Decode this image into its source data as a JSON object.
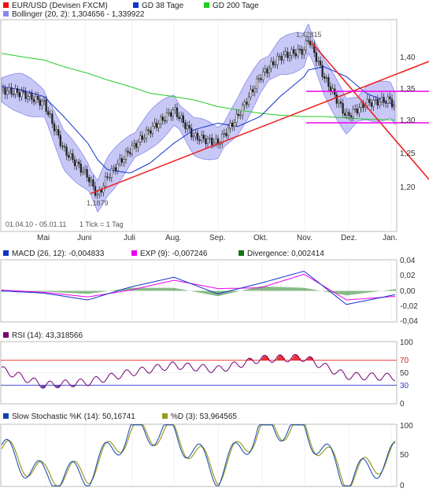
{
  "colors": {
    "price": "#ee1111",
    "gd38": "#1133cc",
    "gd200": "#22cc22",
    "bollinger": "#8888ee",
    "bollinger_fill": "#c8c8f6",
    "trend_red": "#ee2222",
    "support_magenta": "#ee00ee",
    "macd": "#1133cc",
    "exp": "#ee00ee",
    "divergence": "#117711",
    "rsi": "#770077",
    "stoch_k": "#1144aa",
    "stoch_d": "#999922"
  },
  "legend": {
    "price": "EUR/USD (Devisen FXCM)",
    "gd38": "GD 38 Tage",
    "gd200": "GD 200 Tage",
    "bollinger": "Bollinger (20, 2): 1,304656 - 1,339922"
  },
  "info": {
    "range": "01.04.10 - 05.01.11",
    "tick": "1 Tick = 1 Tag",
    "high_label": "1,42815",
    "low_label": "1,1879"
  },
  "months": [
    "Mai",
    "Juni",
    "Juli",
    "Aug.",
    "Sep.",
    "Okt.",
    "Nov.",
    "Dez.",
    "Jan."
  ],
  "macd_legend": {
    "macd": "MACD (26, 12): -0,004833",
    "exp": "EXP (9): -0,007246",
    "divergence": "Divergence: 0,002414"
  },
  "rsi_legend": "RSI (14): 43,318566",
  "stoch_legend": {
    "k": "Slow Stochastic %K (14): 50,16741",
    "d": "%D (3): 53,964565"
  },
  "chart_data": [
    {
      "type": "line",
      "title": "EUR/USD (Devisen FXCM)",
      "x": [
        "2010-04-01",
        "2010-04-15",
        "2010-05-01",
        "2010-05-15",
        "2010-06-01",
        "2010-06-08",
        "2010-06-15",
        "2010-07-01",
        "2010-07-15",
        "2010-08-01",
        "2010-08-15",
        "2010-09-01",
        "2010-09-15",
        "2010-10-01",
        "2010-10-15",
        "2010-11-01",
        "2010-11-04",
        "2010-11-15",
        "2010-12-01",
        "2010-12-15",
        "2011-01-01",
        "2011-01-05"
      ],
      "series": [
        {
          "name": "EUR/USD (Devisen FXCM)",
          "values": [
            1.35,
            1.345,
            1.33,
            1.26,
            1.22,
            1.19,
            1.22,
            1.26,
            1.29,
            1.32,
            1.28,
            1.27,
            1.31,
            1.37,
            1.4,
            1.41,
            1.428,
            1.37,
            1.31,
            1.33,
            1.335,
            1.32
          ]
        },
        {
          "name": "GD 38 Tage",
          "values": [
            1.355,
            1.35,
            1.34,
            1.31,
            1.27,
            1.245,
            1.23,
            1.225,
            1.24,
            1.27,
            1.29,
            1.3,
            1.295,
            1.31,
            1.34,
            1.37,
            1.38,
            1.385,
            1.37,
            1.345,
            1.33,
            1.325
          ]
        },
        {
          "name": "GD 200 Tage",
          "values": [
            1.405,
            1.4,
            1.395,
            1.385,
            1.375,
            1.37,
            1.365,
            1.355,
            1.345,
            1.34,
            1.335,
            1.325,
            1.32,
            1.315,
            1.312,
            1.31,
            1.31,
            1.31,
            1.308,
            1.306,
            1.305,
            1.305
          ]
        }
      ],
      "y_ticks": [
        "1,20",
        "1,25",
        "1,30",
        "1,35",
        "1,40"
      ],
      "ylim": [
        1.17,
        1.44
      ],
      "annotations": [
        "1,42815",
        "1,1879"
      ],
      "horizontal_lines": [
        1.345,
        1.293
      ]
    },
    {
      "type": "line",
      "title": "MACD (26, 12): -0,004833",
      "x": [
        "2010-04-01",
        "2010-05-01",
        "2010-06-01",
        "2010-07-01",
        "2010-08-01",
        "2010-09-01",
        "2010-10-01",
        "2010-11-01",
        "2010-12-01",
        "2011-01-05"
      ],
      "series": [
        {
          "name": "MACD (26, 12)",
          "values": [
            0.0,
            -0.003,
            -0.012,
            0.005,
            0.018,
            -0.004,
            0.01,
            0.026,
            -0.018,
            -0.0048
          ]
        },
        {
          "name": "EXP (9)",
          "values": [
            0.001,
            -0.002,
            -0.008,
            0.001,
            0.014,
            0.003,
            0.004,
            0.022,
            -0.012,
            -0.0072
          ]
        }
      ],
      "y_ticks": [
        "0,04",
        "0,02",
        "0,00",
        "-0,02",
        "-0,04"
      ],
      "ylim": [
        -0.04,
        0.04
      ]
    },
    {
      "type": "line",
      "title": "RSI (14): 43,318566",
      "x": [
        "2010-04-01",
        "2010-05-01",
        "2010-06-01",
        "2010-07-01",
        "2010-08-01",
        "2010-09-01",
        "2010-10-01",
        "2010-11-01",
        "2010-12-01",
        "2011-01-05"
      ],
      "series": [
        {
          "name": "RSI (14)",
          "values": [
            55,
            30,
            35,
            50,
            62,
            55,
            72,
            74,
            45,
            43
          ]
        }
      ],
      "y_ticks": [
        "100",
        "70",
        "50",
        "30",
        "0"
      ],
      "ylim": [
        0,
        100
      ]
    },
    {
      "type": "line",
      "title": "Slow Stochastic %K (14): 50,16741",
      "x": [
        "2010-04-01",
        "2010-05-01",
        "2010-06-01",
        "2010-07-01",
        "2010-08-01",
        "2010-09-01",
        "2010-10-01",
        "2010-11-01",
        "2010-12-01",
        "2011-01-05"
      ],
      "series": [
        {
          "name": "Slow Stochastic %K (14)",
          "values": [
            60,
            15,
            20,
            90,
            85,
            20,
            95,
            95,
            10,
            50
          ]
        },
        {
          "name": "%D (3)",
          "values": [
            62,
            18,
            22,
            88,
            84,
            22,
            93,
            94,
            12,
            54
          ]
        }
      ],
      "y_ticks": [
        "100",
        "50",
        "0"
      ],
      "ylim": [
        0,
        100
      ]
    }
  ]
}
